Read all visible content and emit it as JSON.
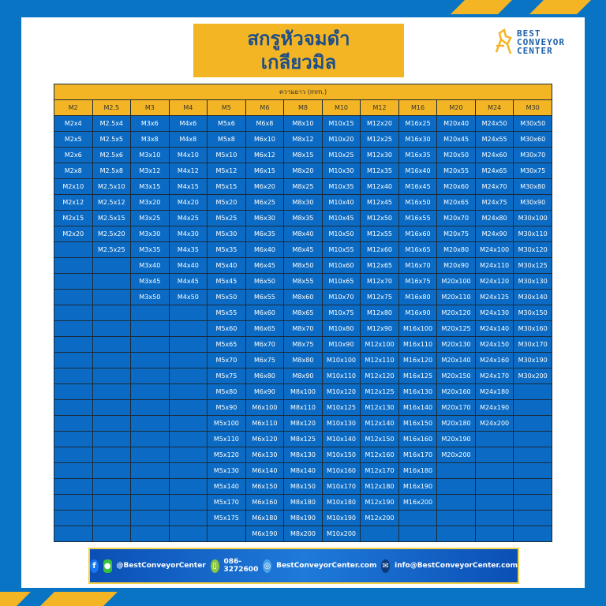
{
  "title": {
    "line1": "สกรูหัวจมดำ",
    "line2": "เกลียวมิล"
  },
  "logo": {
    "text": [
      "BEST",
      "CONVEYOR",
      "CENTER"
    ]
  },
  "colors": {
    "background": "#0a74c4",
    "accent": "#f3b524",
    "cell": "#0b6bc4",
    "title_text": "#1d4e89"
  },
  "table": {
    "caption": "ความยาว (mm.)",
    "headers": [
      "M2",
      "M2.5",
      "M3",
      "M4",
      "M5",
      "M6",
      "M8",
      "M10",
      "M12",
      "M16",
      "M20",
      "M24",
      "M30"
    ],
    "columns": [
      [
        "M2x4",
        "M2x5",
        "M2x6",
        "M2x8",
        "M2x10",
        "M2x12",
        "M2x15",
        "M2x20"
      ],
      [
        "M2.5x4",
        "M2.5x5",
        "M2.5x6",
        "M2.5x8",
        "M2.5x10",
        "M2.5x12",
        "M2.5x15",
        "M2.5x20",
        "M2.5x25"
      ],
      [
        "M3x6",
        "M3x8",
        "M3x10",
        "M3x12",
        "M3x15",
        "M3x20",
        "M3x25",
        "M3x30",
        "M3x35",
        "M3x40",
        "M3x45",
        "M3x50"
      ],
      [
        "M4x6",
        "M4x8",
        "M4x10",
        "M4x12",
        "M4x15",
        "M4x20",
        "M4x25",
        "M4x30",
        "M4x35",
        "M4x40",
        "M4x45",
        "M4x50"
      ],
      [
        "M5x6",
        "M5x8",
        "M5x10",
        "M5x12",
        "M5x15",
        "M5x20",
        "M5x25",
        "M5x30",
        "M5x35",
        "M5x40",
        "M5x45",
        "M5x50",
        "M5x55",
        "M5x60",
        "M5x65",
        "M5x70",
        "M5x75",
        "M5x80",
        "M5x90",
        "M5x100",
        "M5x110",
        "M5x120",
        "M5x130",
        "M5x140",
        "M5x170",
        "M5x175"
      ],
      [
        "M6x8",
        "M6x10",
        "M6x12",
        "M6x15",
        "M6x20",
        "M6x25",
        "M6x30",
        "M6x35",
        "M6x40",
        "M6x45",
        "M6x50",
        "M6x55",
        "M6x60",
        "M6x65",
        "M6x70",
        "M6x75",
        "M6x80",
        "M6x90",
        "M6x100",
        "M6x110",
        "M6x120",
        "M6x130",
        "M6x140",
        "M6x150",
        "M6x160",
        "M6x180",
        "M6x190"
      ],
      [
        "M8x10",
        "M8x12",
        "M8x15",
        "M8x20",
        "M8x25",
        "M8x30",
        "M8x35",
        "M8x40",
        "M8x45",
        "M8x50",
        "M8x55",
        "M8x60",
        "M8x65",
        "M8x70",
        "M8x75",
        "M8x80",
        "M8x90",
        "M8x100",
        "M8x110",
        "M8x120",
        "M8x125",
        "M8x130",
        "M8x140",
        "M8x150",
        "M8x180",
        "M8x190",
        "M8x200"
      ],
      [
        "M10x15",
        "M10x20",
        "M10x25",
        "M10x30",
        "M10x35",
        "M10x40",
        "M10x45",
        "M10x50",
        "M10x55",
        "M10x60",
        "M10x65",
        "M10x70",
        "M10x75",
        "M10x80",
        "M10x90",
        "M10x100",
        "M10x110",
        "M10x120",
        "M10x125",
        "M10x130",
        "M10x140",
        "M10x150",
        "M10x160",
        "M10x170",
        "M10x180",
        "M10x190",
        "M10x200"
      ],
      [
        "M12x20",
        "M12x25",
        "M12x30",
        "M12x35",
        "M12x40",
        "M12x45",
        "M12x50",
        "M12x55",
        "M12x60",
        "M12x65",
        "M12x70",
        "M12x75",
        "M12x80",
        "M12x90",
        "M12x100",
        "M12x110",
        "M12x120",
        "M12x125",
        "M12x130",
        "M12x140",
        "M12x150",
        "M12x160",
        "M12x170",
        "M12x180",
        "M12x190",
        "M12x200"
      ],
      [
        "M16x25",
        "M16x30",
        "M16x35",
        "M16x40",
        "M16x45",
        "M16x50",
        "M16x55",
        "M16x60",
        "M16x65",
        "M16x70",
        "M16x75",
        "M16x80",
        "M16x90",
        "M16x100",
        "M16x110",
        "M16x120",
        "M16x125",
        "M16x130",
        "M16x140",
        "M16x150",
        "M16x160",
        "M16x170",
        "M16x180",
        "M16x190",
        "M16x200"
      ],
      [
        "M20x40",
        "M20x45",
        "M20x50",
        "M20x55",
        "M20x60",
        "M20x65",
        "M20x70",
        "M20x75",
        "M20x80",
        "M20x90",
        "M20x100",
        "M20x110",
        "M20x120",
        "M20x125",
        "M20x130",
        "M20x140",
        "M20x150",
        "M20x160",
        "M20x170",
        "M20x180",
        "M20x190",
        "M20x200"
      ],
      [
        "M24x50",
        "M24x55",
        "M24x60",
        "M24x65",
        "M24x70",
        "M24x75",
        "M24x80",
        "M24x90",
        "M24x100",
        "M24x110",
        "M24x120",
        "M24x125",
        "M24x130",
        "M24x140",
        "M24x150",
        "M24x160",
        "M24x170",
        "M24x180",
        "M24x190",
        "M24x200"
      ],
      [
        "M30x50",
        "M30x60",
        "M30x70",
        "M30x75",
        "M30x80",
        "M30x90",
        "M30x100",
        "M30x110",
        "M30x120",
        "M30x125",
        "M30x130",
        "M30x140",
        "M30x150",
        "M30x160",
        "M30x170",
        "M30x190",
        "M30x200"
      ]
    ]
  },
  "footer": {
    "social": "@BestConveyorCenter",
    "phone": "086-3272600",
    "website": "BestConveyorCenter.com",
    "email": "info@BestConveyorCenter.com",
    "icons": [
      "facebook-icon",
      "line-icon",
      "phone-icon",
      "globe-icon",
      "mail-icon"
    ]
  }
}
